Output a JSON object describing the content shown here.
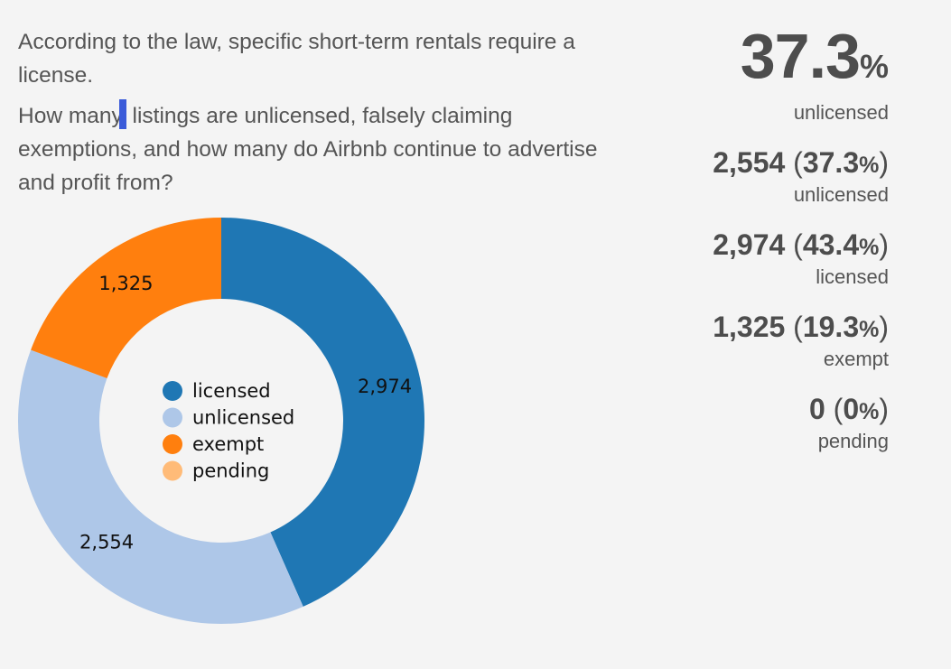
{
  "intro": {
    "line1": "According to the law, specific short-term rentals require a license.",
    "q_before": "How many",
    "q_after": "listings are unlicensed, falsely claiming exemptions, and how many do Airbnb continue to advertise and profit from?"
  },
  "headline": {
    "value": "37.3",
    "unit": "%",
    "label": "unlicensed"
  },
  "stats": [
    {
      "count": "2,554",
      "percent": "37.3",
      "unit": "%",
      "label": "unlicensed"
    },
    {
      "count": "2,974",
      "percent": "43.4",
      "unit": "%",
      "label": "licensed"
    },
    {
      "count": "1,325",
      "percent": "19.3",
      "unit": "%",
      "label": "exempt"
    },
    {
      "count": "0",
      "percent": "0",
      "unit": "%",
      "label": "pending"
    }
  ],
  "chart_data": {
    "type": "pie",
    "subtype": "donut",
    "title": "",
    "categories": [
      "licensed",
      "unlicensed",
      "exempt",
      "pending"
    ],
    "values": [
      2974,
      2554,
      1325,
      0
    ],
    "labels": [
      "2,974",
      "2,554",
      "1,325",
      ""
    ],
    "colors": [
      "#1f77b4",
      "#aec7e8",
      "#ff7f0e",
      "#ffbb78"
    ],
    "legend_position": "center"
  }
}
